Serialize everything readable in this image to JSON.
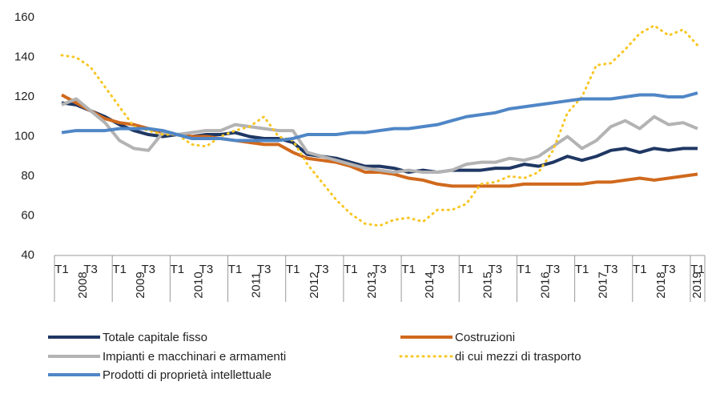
{
  "chart_data": {
    "type": "line",
    "categories": [
      "T1",
      null,
      "T3",
      null,
      "T1",
      null,
      "T3",
      null,
      "T1",
      null,
      "T3",
      null,
      "T1",
      null,
      "T3",
      null,
      "T1",
      null,
      "T3",
      null,
      "T1",
      null,
      "T3",
      null,
      "T1",
      null,
      "T3",
      null,
      "T1",
      null,
      "T3",
      null,
      "T1",
      null,
      "T3",
      null,
      "T1",
      null,
      "T3",
      null,
      "T1",
      null,
      "T3",
      null,
      "T1"
    ],
    "years": [
      "2008",
      "2009",
      "2010",
      "2011",
      "2012",
      "2013",
      "2014",
      "2015",
      "2016",
      "2017",
      "2018",
      "2019"
    ],
    "ylim": [
      40,
      160
    ],
    "yticks": [
      40,
      60,
      80,
      100,
      120,
      140,
      160
    ],
    "grid": false,
    "series": [
      {
        "name": "Totale capitale fisso",
        "color": "#1f3763",
        "style": "solid",
        "values": [
          117,
          116,
          113,
          110,
          106,
          103,
          101,
          100,
          101,
          100,
          101,
          101,
          102,
          100,
          99,
          99,
          97,
          91,
          90,
          89,
          87,
          85,
          85,
          84,
          82,
          83,
          82,
          83,
          83,
          83,
          84,
          84,
          86,
          85,
          87,
          90,
          88,
          90,
          93,
          94,
          92,
          94,
          93,
          94,
          94
        ]
      },
      {
        "name": "Costruzioni",
        "color": "#d0691d",
        "style": "solid",
        "values": [
          121,
          117,
          113,
          109,
          107,
          106,
          104,
          102,
          101,
          100,
          100,
          99,
          98,
          97,
          96,
          96,
          92,
          89,
          88,
          87,
          85,
          82,
          82,
          81,
          79,
          78,
          76,
          75,
          75,
          75,
          75,
          75,
          76,
          76,
          76,
          76,
          76,
          77,
          77,
          78,
          79,
          78,
          79,
          80,
          81
        ]
      },
      {
        "name": "Impianti e macchinari e armamenti",
        "color": "#b3b3b3",
        "style": "solid",
        "values": [
          116,
          119,
          113,
          107,
          98,
          94,
          93,
          102,
          101,
          102,
          103,
          103,
          106,
          105,
          104,
          103,
          103,
          92,
          90,
          88,
          86,
          84,
          83,
          82,
          83,
          82,
          82,
          83,
          86,
          87,
          87,
          89,
          88,
          90,
          95,
          100,
          94,
          98,
          105,
          108,
          104,
          110,
          106,
          107,
          104
        ]
      },
      {
        "name": "di cui mezzi di trasporto",
        "color": "#f8c623",
        "style": "dotted",
        "values": [
          141,
          140,
          135,
          125,
          115,
          105,
          103,
          101,
          101,
          96,
          95,
          100,
          103,
          105,
          110,
          100,
          98,
          86,
          77,
          68,
          61,
          56,
          55,
          58,
          59,
          57,
          63,
          63,
          66,
          76,
          77,
          80,
          79,
          82,
          93,
          112,
          120,
          136,
          137,
          144,
          152,
          156,
          151,
          154,
          146
        ]
      },
      {
        "name": "Prodotti di proprietà intellettuale",
        "color": "#4f86c6",
        "style": "solid",
        "values": [
          102,
          103,
          103,
          103,
          104,
          104,
          104,
          103,
          101,
          99,
          99,
          99,
          98,
          98,
          98,
          98,
          99,
          101,
          101,
          101,
          102,
          102,
          103,
          104,
          104,
          105,
          106,
          108,
          110,
          111,
          112,
          114,
          115,
          116,
          117,
          118,
          119,
          119,
          119,
          120,
          121,
          121,
          120,
          120,
          122
        ]
      }
    ]
  }
}
